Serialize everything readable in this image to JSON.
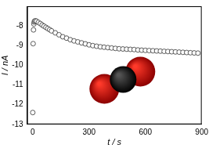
{
  "chart_data": {
    "type": "scatter",
    "x_label": "t / s",
    "y_label": "I / nA",
    "x": [
      0,
      2,
      4,
      6,
      8,
      10,
      15,
      20,
      30,
      40,
      50,
      60,
      70,
      80,
      90,
      100,
      120,
      140,
      160,
      180,
      200,
      220,
      240,
      260,
      280,
      300,
      320,
      340,
      360,
      380,
      400,
      420,
      440,
      460,
      480,
      500,
      520,
      540,
      560,
      580,
      600,
      620,
      640,
      660,
      680,
      700,
      720,
      740,
      760,
      780,
      800,
      820,
      840,
      860,
      880
    ],
    "values": [
      -12.4,
      -8.9,
      -8.2,
      -7.9,
      -7.8,
      -7.75,
      -7.74,
      -7.76,
      -7.82,
      -7.88,
      -7.95,
      -8.01,
      -8.07,
      -8.13,
      -8.19,
      -8.25,
      -8.35,
      -8.45,
      -8.55,
      -8.62,
      -8.7,
      -8.76,
      -8.81,
      -8.86,
      -8.91,
      -8.96,
      -9.0,
      -9.03,
      -9.06,
      -9.08,
      -9.1,
      -9.12,
      -9.14,
      -9.16,
      -9.17,
      -9.18,
      -9.19,
      -9.2,
      -9.22,
      -9.23,
      -9.24,
      -9.25,
      -9.26,
      -9.27,
      -9.28,
      -9.29,
      -9.3,
      -9.31,
      -9.32,
      -9.33,
      -9.34,
      -9.35,
      -9.36,
      -9.37,
      -9.38
    ],
    "color": "#333333",
    "marker": "open_circle",
    "xlim": [
      -30,
      900
    ],
    "xticks": [
      0,
      300,
      600,
      900
    ],
    "ylim": [
      -13,
      -7
    ],
    "yticks": [
      -13,
      -12,
      -11,
      -10,
      -9,
      -8
    ],
    "grid": false
  }
}
